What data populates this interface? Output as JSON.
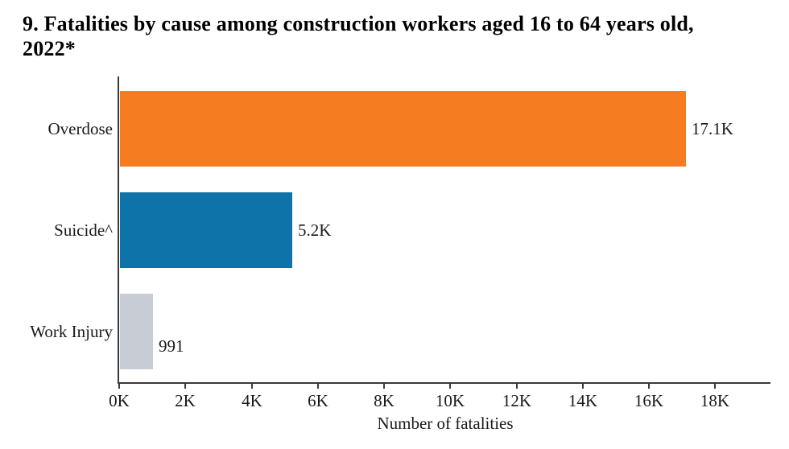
{
  "page": {
    "background_color": "#ffffff"
  },
  "chart_data": {
    "type": "bar",
    "orientation": "horizontal",
    "title": "9. Fatalities by cause among construction workers aged 16 to 64 years old, 2022*",
    "title_lines": [
      "9. Fatalities by cause among construction workers aged 16 to 64 years old,",
      "2022*"
    ],
    "categories": [
      "Overdose",
      "Suicide^",
      "Work Injury"
    ],
    "values": [
      17100,
      5200,
      991
    ],
    "value_labels": [
      "17.1K",
      "5.2K",
      "991"
    ],
    "bar_colors": [
      "#F57C20",
      "#0E73A8",
      "#C8CDD5"
    ],
    "xlabel": "Number of fatalities",
    "x_ticks": [
      {
        "value": 0,
        "label": "0K"
      },
      {
        "value": 2000,
        "label": "2K"
      },
      {
        "value": 4000,
        "label": "4K"
      },
      {
        "value": 6000,
        "label": "6K"
      },
      {
        "value": 8000,
        "label": "8K"
      },
      {
        "value": 10000,
        "label": "10K"
      },
      {
        "value": 12000,
        "label": "12K"
      },
      {
        "value": 14000,
        "label": "14K"
      },
      {
        "value": 16000,
        "label": "16K"
      },
      {
        "value": 18000,
        "label": "18K"
      }
    ],
    "xlim": [
      0,
      19700
    ],
    "grid": false,
    "legend": null,
    "axis_color": "#3A3A3A",
    "text_color": "#1A1A1A",
    "value_label_dy": [
      0,
      0,
      18
    ]
  }
}
